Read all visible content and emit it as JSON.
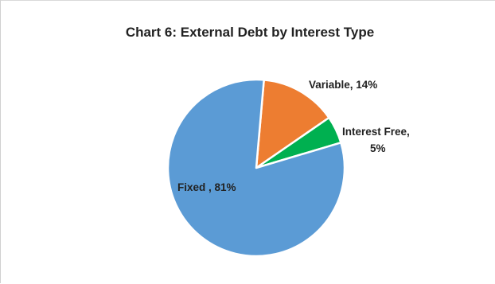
{
  "chart_data": {
    "type": "pie",
    "title": "Chart 6: External Debt by Interest Type",
    "slices": [
      {
        "name": "Variable",
        "value": 14,
        "label": "Variable, 14%",
        "color": "#ED7D31"
      },
      {
        "name": "Interest Free",
        "value": 5,
        "label_lines": [
          "Interest Free,",
          "5%"
        ],
        "color": "#00B050"
      },
      {
        "name": "Fixed",
        "value": 81,
        "label": "Fixed , 81%",
        "color": "#5B9BD5"
      }
    ],
    "legend": "none"
  }
}
